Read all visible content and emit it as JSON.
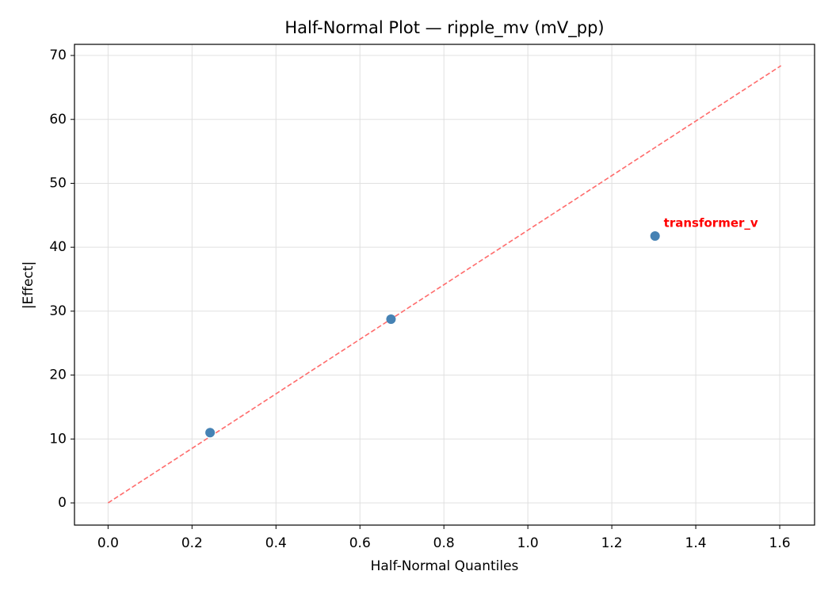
{
  "chart_data": {
    "type": "scatter",
    "title": "Half-Normal Plot — ripple_mv (mV_pp)",
    "x_label": "Half-Normal Quantiles",
    "y_label": "|Effect|",
    "series": [
      {
        "x": [
          0.243,
          0.674,
          1.303
        ],
        "values": [
          11.0,
          28.75,
          41.75
        ],
        "color": "#4682b4",
        "labels": [
          null,
          null,
          "transformer_v"
        ],
        "label_color": "#ff0000"
      }
    ],
    "reference_line": {
      "x": [
        0,
        1.603
      ],
      "values": [
        0,
        68.4
      ],
      "color": "#ff6b6b",
      "dashed": true
    },
    "xlim": [
      -0.08,
      1.683
    ],
    "ylim": [
      -3.47,
      71.74
    ],
    "xticks": [
      {
        "value": 0,
        "label": "0.0"
      },
      0.2,
      0.4,
      0.6,
      0.8,
      {
        "value": 1,
        "label": "1.0"
      },
      1.2,
      1.4,
      1.6
    ],
    "yticks": [
      0,
      10,
      20,
      30,
      40,
      50,
      60,
      70
    ],
    "grid": true
  }
}
